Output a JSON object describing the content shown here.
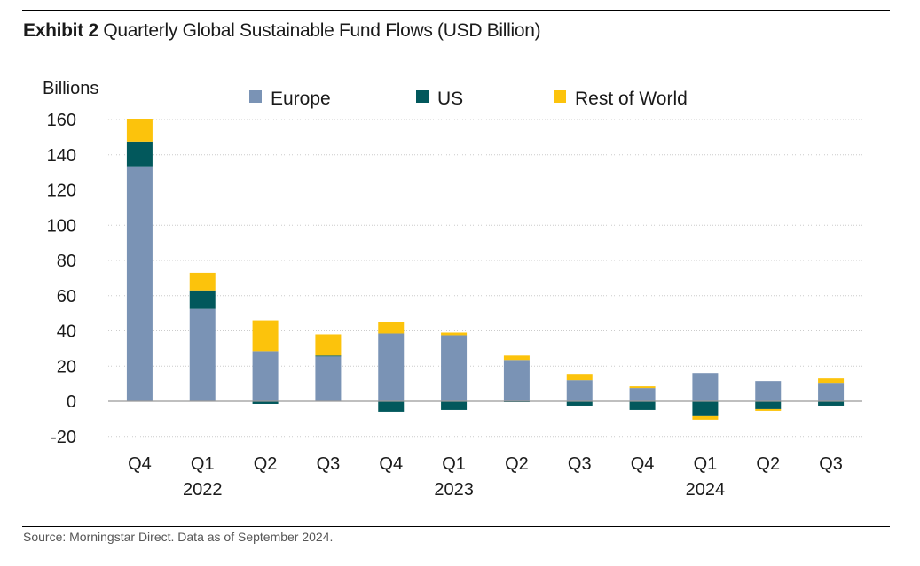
{
  "header": {
    "exhibit_label": "Exhibit 2",
    "title": "Quarterly Global Sustainable Fund Flows (USD Billion)"
  },
  "footer": {
    "source": "Source: Morningstar Direct. Data as of September 2024."
  },
  "colors": {
    "europe": "#7a93b5",
    "us": "#02585c",
    "rest_of_world": "#fcc30c",
    "grid": "#cccccc",
    "zero_line": "#999999"
  },
  "chart_data": {
    "type": "bar",
    "stacked": true,
    "title": "Quarterly Global Sustainable Fund Flows (USD Billion)",
    "ylabel": "Billions",
    "xlabel": "",
    "ylim": [
      -20,
      160
    ],
    "yticks": [
      -20,
      0,
      20,
      40,
      60,
      80,
      100,
      120,
      140,
      160
    ],
    "categories": [
      "Q4",
      "Q1",
      "Q2",
      "Q3",
      "Q4",
      "Q1",
      "Q2",
      "Q3",
      "Q4",
      "Q1",
      "Q2",
      "Q3"
    ],
    "year_labels": [
      {
        "label": "2022",
        "category_index": 1
      },
      {
        "label": "2023",
        "category_index": 5
      },
      {
        "label": "2024",
        "category_index": 9
      }
    ],
    "legend_position": "top",
    "series": [
      {
        "name": "Europe",
        "color_key": "europe",
        "values": [
          133.5,
          52.5,
          28.5,
          25.5,
          38.5,
          37.5,
          23.5,
          12,
          7.5,
          16,
          11.5,
          10.5
        ]
      },
      {
        "name": "US",
        "color_key": "us",
        "values": [
          14,
          10.5,
          -1.5,
          0.5,
          -6,
          -5,
          -0.5,
          -2.5,
          -5,
          -8.5,
          -4.5,
          -2.5
        ]
      },
      {
        "name": "Rest of World",
        "color_key": "rest_of_world",
        "values": [
          13,
          10,
          17.5,
          12,
          6.5,
          1.5,
          2.5,
          3.5,
          1,
          -2,
          -1,
          2.5
        ]
      }
    ]
  }
}
